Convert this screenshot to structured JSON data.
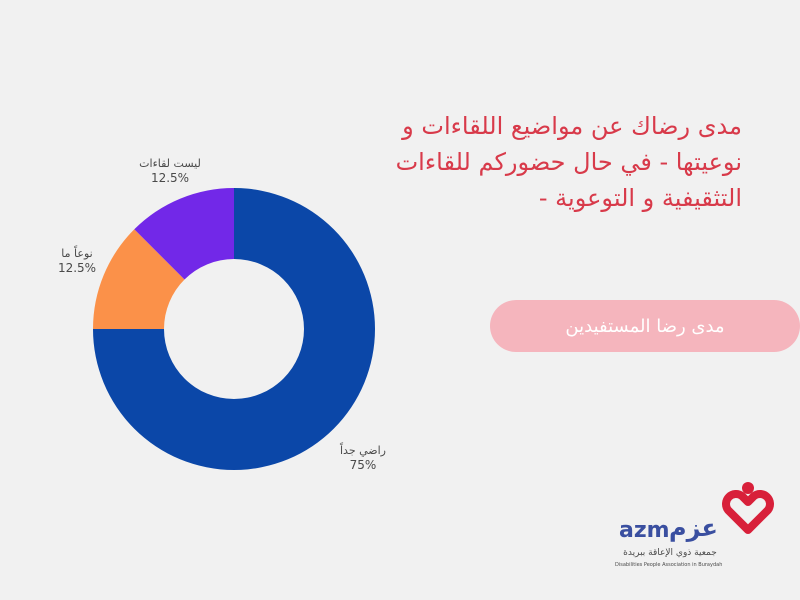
{
  "chart_data": {
    "type": "pie",
    "variant": "donut",
    "title": "مدى رضاك عن مواضيع اللقاءات و نوعيتها - في حال حضوركم للقاءات التثقيفية و التوعوية -",
    "slices": [
      {
        "label": "راضي جداً",
        "value": 75,
        "percent_label": "75%",
        "color": "#0b47a8"
      },
      {
        "label": "نوعاً ما",
        "value": 12.5,
        "percent_label": "12.5%",
        "color": "#fb9149"
      },
      {
        "label": "ليست لقاءات",
        "value": 12.5,
        "percent_label": "12.5%",
        "color": "#7228e8"
      }
    ]
  },
  "badge": {
    "text": "مدى رضا المستفيدين",
    "background": "#f5b5bd"
  },
  "logo": {
    "latin": "azm",
    "arabic_name": "عزم",
    "arabic_sub": "جمعية ذوي الإعاقة ببريدة",
    "english_sub": "Disabilities People Association in Buraydah"
  },
  "colors": {
    "background": "#f1f1f1",
    "title": "#d83a4a",
    "label_text": "#4a4a4a",
    "logo_blue": "#3a4fa0",
    "logo_red": "#d8203a"
  }
}
